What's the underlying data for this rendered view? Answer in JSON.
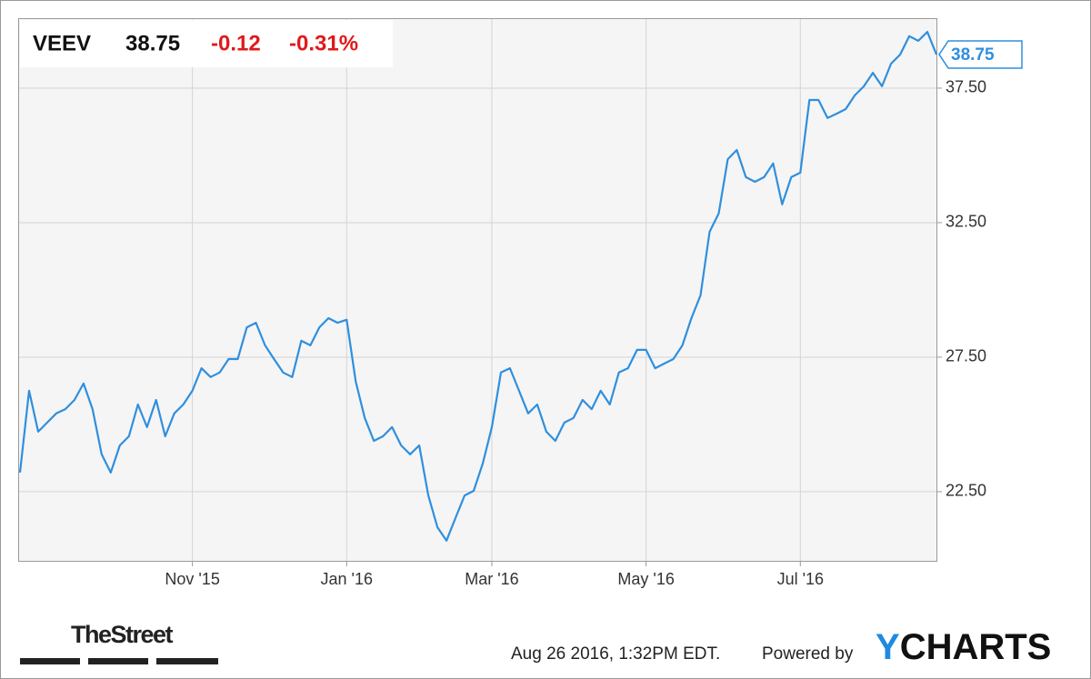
{
  "chart_data": {
    "type": "line",
    "ticker": "VEEV",
    "price": "38.75",
    "change": "-0.12",
    "change_pct": "-0.31%",
    "color": "#2f8fde",
    "categories": [
      null,
      null,
      null,
      null,
      null,
      null,
      null,
      null,
      null,
      null,
      null,
      null,
      null,
      null,
      null,
      null,
      null,
      null,
      null,
      "Nov '15",
      null,
      null,
      null,
      null,
      null,
      null,
      null,
      null,
      null,
      null,
      null,
      null,
      null,
      null,
      null,
      null,
      "Jan '16",
      null,
      null,
      null,
      null,
      null,
      null,
      null,
      null,
      null,
      null,
      null,
      null,
      null,
      null,
      null,
      "Mar '16",
      null,
      null,
      null,
      null,
      null,
      null,
      null,
      null,
      null,
      null,
      null,
      null,
      null,
      null,
      null,
      null,
      "May '16",
      null,
      null,
      null,
      null,
      null,
      null,
      null,
      null,
      null,
      null,
      null,
      null,
      null,
      null,
      null,
      null,
      "Jul '16",
      null,
      null,
      null,
      null,
      null,
      null,
      null,
      null,
      null,
      null,
      null,
      null,
      null,
      null,
      null
    ],
    "values": [
      23.21,
      26.25,
      24.73,
      25.07,
      25.41,
      25.57,
      25.91,
      26.52,
      25.57,
      23.89,
      23.21,
      24.22,
      24.56,
      25.74,
      24.9,
      25.91,
      24.56,
      25.41,
      25.74,
      26.25,
      27.09,
      26.76,
      26.93,
      27.43,
      27.43,
      28.61,
      28.78,
      27.94,
      27.43,
      26.93,
      26.76,
      28.11,
      27.94,
      28.61,
      28.95,
      28.78,
      28.89,
      26.59,
      25.24,
      24.39,
      24.56,
      24.9,
      24.22,
      23.89,
      24.22,
      22.36,
      21.18,
      20.68,
      21.52,
      22.36,
      22.53,
      23.55,
      24.9,
      26.93,
      27.09,
      26.25,
      25.41,
      25.74,
      24.73,
      24.39,
      25.07,
      25.24,
      25.91,
      25.57,
      26.25,
      25.74,
      26.93,
      27.09,
      27.77,
      27.77,
      27.09,
      27.26,
      27.43,
      27.94,
      28.95,
      29.8,
      32.16,
      32.84,
      34.86,
      35.2,
      34.19,
      34.02,
      34.19,
      34.7,
      33.18,
      34.19,
      34.36,
      37.06,
      37.06,
      36.39,
      36.55,
      36.72,
      37.23,
      37.57,
      38.07,
      37.57,
      38.41,
      38.75,
      39.43,
      39.26,
      39.59,
      38.75
    ],
    "ylim": [
      19.93,
      40.1
    ],
    "yticks": [
      {
        "value": 22.5,
        "label": "22.50"
      },
      {
        "value": 27.5,
        "label": "27.50"
      },
      {
        "value": 32.5,
        "label": "32.50"
      },
      {
        "value": 37.5,
        "label": "37.50"
      }
    ],
    "grid": true
  },
  "footer": {
    "logo": "TheStreet",
    "timestamp": "Aug 26 2016, 1:32PM EDT.",
    "powered_by": "Powered by",
    "brand_first": "Y",
    "brand_rest": "CHARTS"
  }
}
